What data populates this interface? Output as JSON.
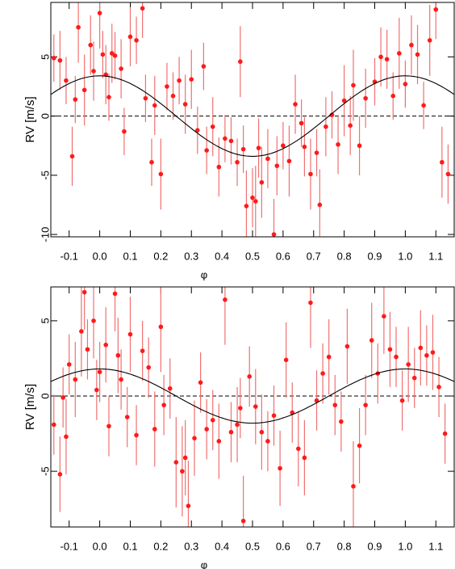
{
  "chart_data": [
    {
      "type": "scatter",
      "x_label": "φ",
      "y_label": "RV [m/s]",
      "color": "#ff1a1a",
      "error_color": "#f07070",
      "zero_line": true,
      "model": {
        "amplitude": 3.4,
        "color": "#000000"
      },
      "xlim": [
        -0.16,
        1.16
      ],
      "ylim": [
        -10.2,
        9.6
      ],
      "xticks": [
        -0.1,
        {
          "value": 0,
          "label": "0.0"
        },
        0.1,
        0.2,
        0.3,
        0.4,
        0.5,
        0.6,
        0.7,
        0.8,
        0.9,
        {
          "value": 1,
          "label": "1.0"
        },
        1.1
      ],
      "yticks": [
        -10,
        -5,
        0,
        5
      ],
      "x": [
        -0.15,
        -0.13,
        -0.11,
        -0.09,
        -0.08,
        -0.07,
        -0.05,
        -0.03,
        -0.02,
        0.0,
        0.01,
        0.02,
        0.03,
        0.04,
        0.05,
        0.07,
        0.08,
        0.1,
        0.12,
        0.14,
        0.15,
        0.17,
        0.18,
        0.2,
        0.22,
        0.24,
        0.26,
        0.28,
        0.3,
        0.32,
        0.34,
        0.35,
        0.37,
        0.39,
        0.41,
        0.43,
        0.45,
        0.46,
        0.47,
        0.48,
        0.5,
        0.51,
        0.52,
        0.53,
        0.55,
        0.57,
        0.58,
        0.6,
        0.62,
        0.64,
        0.66,
        0.67,
        0.69,
        0.71,
        0.72,
        0.74,
        0.76,
        0.78,
        0.8,
        0.82,
        0.83,
        0.85,
        0.87,
        0.9,
        0.92,
        0.94,
        0.96,
        0.98,
        1.0,
        1.02,
        1.04,
        1.06,
        1.08,
        1.1,
        1.12,
        1.14
      ],
      "values": [
        4.9,
        4.7,
        3.0,
        -3.4,
        1.4,
        7.5,
        2.2,
        6.0,
        3.8,
        8.7,
        5.2,
        3.5,
        1.6,
        5.3,
        5.1,
        4.0,
        -1.3,
        6.7,
        6.4,
        9.1,
        1.5,
        -3.9,
        0.9,
        -4.9,
        2.5,
        1.7,
        3.0,
        1.0,
        3.1,
        -1.2,
        4.2,
        -2.9,
        -0.9,
        -4.3,
        -1.9,
        -2.1,
        -3.9,
        4.6,
        -2.8,
        -7.6,
        -6.9,
        -7.2,
        -2.7,
        -5.6,
        -3.6,
        -10.0,
        -4.2,
        -2.5,
        -3.8,
        1.0,
        -0.6,
        -2.6,
        -4.9,
        -3.1,
        -7.5,
        -0.9,
        0.1,
        -2.4,
        1.3,
        -0.8,
        2.6,
        -2.5,
        1.5,
        2.9,
        5.0,
        4.8,
        1.7,
        5.3,
        2.7,
        6.0,
        5.2,
        0.9,
        6.4,
        9.0,
        -3.9,
        -4.9
      ],
      "errors": [
        2,
        2.5,
        2,
        2.5,
        2,
        3,
        3,
        2.5,
        2.5,
        3,
        2,
        2.5,
        2,
        2.5,
        2,
        2.5,
        2,
        2.5,
        2,
        2.5,
        2,
        2,
        2.5,
        3,
        2,
        2,
        2,
        2.5,
        2.5,
        2,
        2,
        2,
        2.5,
        2.5,
        2,
        2,
        2,
        3,
        2,
        3,
        2.5,
        3,
        2.5,
        3,
        2.5,
        3,
        2.5,
        2,
        3,
        2.5,
        2,
        2.5,
        3,
        2,
        3,
        2.5,
        2,
        2.5,
        3,
        2.5,
        3,
        2.5,
        2.5,
        2,
        2.5,
        2.5,
        2,
        3,
        2,
        2.5,
        2.5,
        2,
        3,
        2.5,
        3,
        2.5
      ]
    },
    {
      "type": "scatter",
      "x_label": "φ",
      "y_label": "RV [m/s]",
      "color": "#ff1a1a",
      "error_color": "#f07070",
      "zero_line": true,
      "model": {
        "amplitude": 1.8,
        "color": "#000000"
      },
      "xlim": [
        -0.16,
        1.16
      ],
      "ylim": [
        -8.7,
        7.25
      ],
      "xticks": [
        -0.1,
        {
          "value": 0,
          "label": "0.0"
        },
        0.1,
        0.2,
        0.3,
        0.4,
        0.5,
        0.6,
        0.7,
        0.8,
        0.9,
        {
          "value": 1,
          "label": "1.0"
        },
        1.1
      ],
      "yticks": [
        -5,
        0,
        5
      ],
      "x": [
        -0.15,
        -0.13,
        -0.12,
        -0.11,
        -0.1,
        -0.08,
        -0.06,
        -0.05,
        -0.04,
        -0.02,
        -0.01,
        0.0,
        0.02,
        0.03,
        0.05,
        0.06,
        0.07,
        0.09,
        0.1,
        0.12,
        0.14,
        0.16,
        0.18,
        0.2,
        0.21,
        0.23,
        0.25,
        0.27,
        0.28,
        0.29,
        0.31,
        0.33,
        0.35,
        0.37,
        0.39,
        0.41,
        0.43,
        0.45,
        0.46,
        0.47,
        0.49,
        0.51,
        0.53,
        0.55,
        0.57,
        0.59,
        0.61,
        0.63,
        0.65,
        0.67,
        0.69,
        0.71,
        0.73,
        0.75,
        0.77,
        0.79,
        0.81,
        0.83,
        0.85,
        0.87,
        0.89,
        0.91,
        0.93,
        0.95,
        0.97,
        0.99,
        1.01,
        1.03,
        1.05,
        1.07,
        1.09,
        1.11,
        1.13
      ],
      "values": [
        -1.9,
        -5.2,
        -0.1,
        -2.7,
        2.1,
        1.1,
        4.3,
        6.9,
        3.1,
        5.0,
        0.4,
        1.6,
        3.4,
        -2.0,
        6.8,
        2.7,
        1.1,
        -1.4,
        4.1,
        -2.6,
        3.0,
        1.9,
        -2.2,
        4.6,
        -0.6,
        0.5,
        -4.4,
        -5.0,
        -4.1,
        -7.3,
        -2.8,
        0.9,
        -2.2,
        -1.6,
        -3.0,
        6.4,
        -2.4,
        -1.9,
        -0.8,
        -8.3,
        1.3,
        -0.7,
        -2.4,
        -3.0,
        -1.3,
        -4.8,
        2.4,
        -1.1,
        -3.5,
        -4.1,
        6.2,
        -0.3,
        1.5,
        2.6,
        -0.6,
        -1.7,
        3.3,
        -6.0,
        -3.3,
        -0.6,
        3.7,
        1.5,
        5.3,
        3.1,
        2.6,
        -0.3,
        2.1,
        1.2,
        3.2,
        2.7,
        2.9,
        0.6,
        -2.5
      ],
      "errors": [
        2,
        2.5,
        2,
        2.5,
        2,
        2.5,
        3,
        2.5,
        2,
        2.5,
        2,
        2,
        2.5,
        2,
        2.5,
        2.5,
        2,
        2,
        2.5,
        2,
        2,
        2,
        2.5,
        3,
        2,
        2,
        3,
        3,
        2.5,
        3,
        2.5,
        2,
        2,
        2,
        2.5,
        3,
        2,
        2.5,
        2,
        3,
        2,
        2.5,
        2.5,
        2,
        2,
        2.5,
        2.5,
        2,
        2.5,
        2.5,
        3,
        2,
        2,
        2.5,
        2,
        2,
        2.5,
        3,
        2.5,
        2,
        2.5,
        2,
        2.5,
        2.5,
        2,
        2,
        2.5,
        2,
        2.5,
        2,
        2.5,
        2,
        2
      ]
    }
  ]
}
